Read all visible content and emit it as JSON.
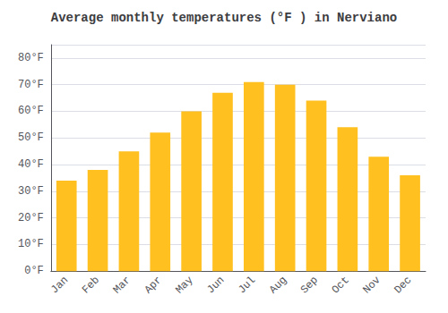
{
  "chart_data": {
    "type": "bar",
    "title": "Average monthly temperatures (°F ) in Nerviano",
    "categories": [
      "Jan",
      "Feb",
      "Mar",
      "Apr",
      "May",
      "Jun",
      "Jul",
      "Aug",
      "Sep",
      "Oct",
      "Nov",
      "Dec"
    ],
    "values": [
      34,
      38,
      45,
      52,
      60,
      67,
      71,
      70,
      64,
      54,
      43,
      36
    ],
    "color": "#FFC020",
    "ylim": [
      0,
      85
    ],
    "yticks": [
      {
        "value": 0,
        "label": "0°F"
      },
      {
        "value": 10,
        "label": "10°F"
      },
      {
        "value": 20,
        "label": "20°F"
      },
      {
        "value": 30,
        "label": "30°F"
      },
      {
        "value": 40,
        "label": "40°F"
      },
      {
        "value": 50,
        "label": "50°F"
      },
      {
        "value": 60,
        "label": "60°F"
      },
      {
        "value": 70,
        "label": "70°F"
      },
      {
        "value": 80,
        "label": "80°F"
      }
    ],
    "grid": true
  }
}
